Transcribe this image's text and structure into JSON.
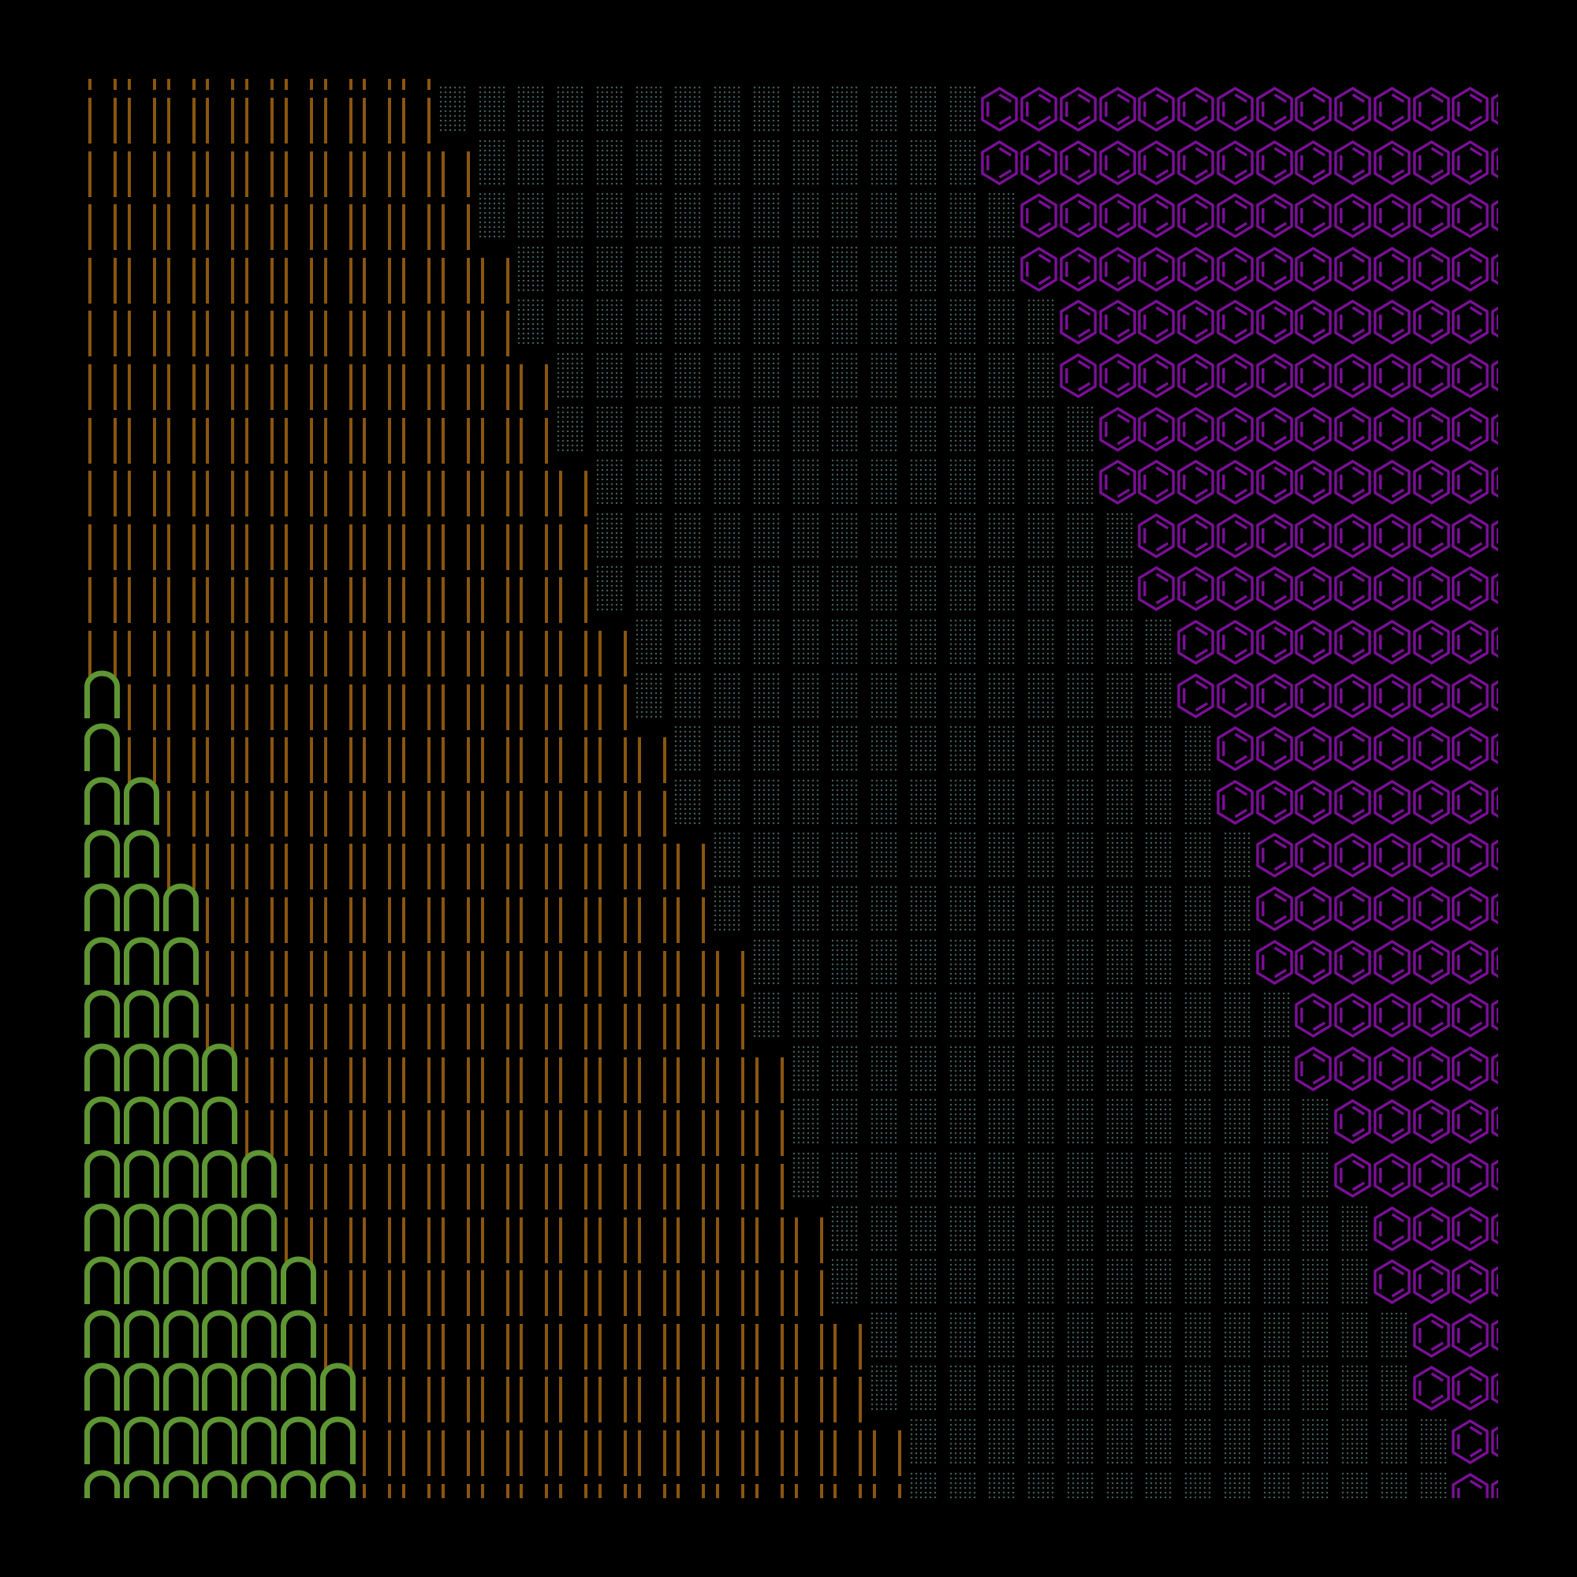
{
  "artwork": {
    "columns": 37,
    "glyphs": {
      "green": "arch-glyph",
      "brown": "double-bar-glyph",
      "teal": "dotted-block-glyph",
      "purple": "benzene-hexagon-glyph"
    },
    "colors": {
      "background": "#000000",
      "green": "#5f9634",
      "brown": "#8a560f",
      "teal": "#3e5e59",
      "purple": "#7b0f97"
    },
    "rows_note_fields": [
      "green_count",
      "brown_last_col",
      "teal_last_col"
    ],
    "rows": [
      [
        0,
        8,
        22
      ],
      [
        0,
        9,
        22
      ],
      [
        0,
        9,
        23
      ],
      [
        0,
        10,
        23
      ],
      [
        0,
        10,
        24
      ],
      [
        0,
        11,
        24
      ],
      [
        0,
        11,
        25
      ],
      [
        0,
        12,
        25
      ],
      [
        0,
        12,
        26
      ],
      [
        0,
        12,
        26
      ],
      [
        0,
        13,
        27
      ],
      [
        1,
        13,
        27
      ],
      [
        1,
        14,
        28
      ],
      [
        2,
        14,
        28
      ],
      [
        2,
        15,
        29
      ],
      [
        3,
        15,
        29
      ],
      [
        3,
        16,
        29
      ],
      [
        3,
        16,
        30
      ],
      [
        4,
        17,
        30
      ],
      [
        4,
        17,
        31
      ],
      [
        5,
        17,
        31
      ],
      [
        5,
        18,
        32
      ],
      [
        6,
        18,
        32
      ],
      [
        6,
        19,
        33
      ],
      [
        7,
        19,
        33
      ],
      [
        7,
        20,
        34
      ],
      [
        7,
        20,
        34
      ]
    ]
  }
}
